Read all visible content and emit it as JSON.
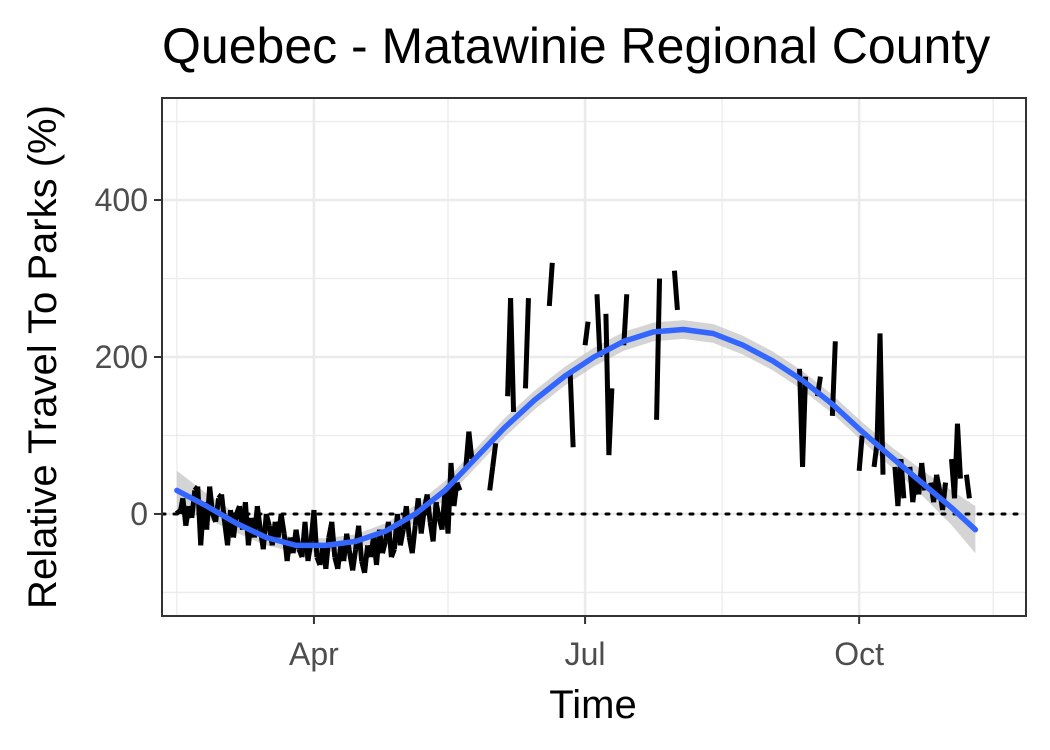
{
  "chart_data": {
    "type": "line",
    "title": "Quebec - Matawinie Regional County",
    "xlabel": "Time",
    "ylabel": "Relative Travel To Parks (%)",
    "x_axis": {
      "type": "date",
      "ticks": [
        "Apr",
        "Jul",
        "Oct"
      ],
      "range": [
        "2020-02-10",
        "2020-11-26"
      ]
    },
    "y_axis": {
      "ticks": [
        "0",
        "200",
        "400"
      ],
      "range": [
        -130,
        530
      ]
    },
    "grid": true,
    "reference_line": {
      "y": 0,
      "style": "dotted"
    },
    "series": [
      {
        "kind": "daily",
        "color": "#000000",
        "points": [
          [
            "2020-02-15",
            5
          ],
          [
            "2020-02-16",
            0
          ],
          [
            "2020-02-17",
            20
          ],
          [
            "2020-02-18",
            -15
          ],
          [
            "2020-02-19",
            10
          ],
          [
            "2020-02-20",
            -5
          ],
          [
            "2020-02-21",
            30
          ],
          [
            "2020-02-22",
            35
          ],
          [
            "2020-02-23",
            -40
          ],
          [
            "2020-02-24",
            15
          ],
          [
            "2020-02-25",
            -20
          ],
          [
            "2020-02-26",
            35
          ],
          [
            "2020-02-27",
            0
          ],
          [
            "2020-02-28",
            -10
          ],
          [
            "2020-02-29",
            20
          ],
          [
            "2020-03-01",
            25
          ],
          [
            "2020-03-02",
            -10
          ],
          [
            "2020-03-03",
            -40
          ],
          [
            "2020-03-04",
            5
          ],
          [
            "2020-03-05",
            -30
          ],
          [
            "2020-03-06",
            0
          ],
          [
            "2020-03-07",
            10
          ],
          [
            "2020-03-08",
            -20
          ],
          [
            "2020-03-09",
            15
          ],
          [
            "2020-03-10",
            -40
          ],
          [
            "2020-03-11",
            -5
          ],
          [
            "2020-03-12",
            -30
          ],
          [
            "2020-03-13",
            10
          ],
          [
            "2020-03-14",
            -20
          ],
          [
            "2020-03-15",
            -45
          ],
          [
            "2020-03-16",
            0
          ],
          [
            "2020-03-17",
            -15
          ],
          [
            "2020-03-18",
            -40
          ],
          [
            "2020-03-19",
            -10
          ],
          [
            "2020-03-20",
            -30
          ],
          [
            "2020-03-21",
            0
          ],
          [
            "2020-03-22",
            -25
          ],
          [
            "2020-03-23",
            -60
          ],
          [
            "2020-03-24",
            -30
          ],
          [
            "2020-03-25",
            -50
          ],
          [
            "2020-03-26",
            -20
          ],
          [
            "2020-03-27",
            -45
          ],
          [
            "2020-03-28",
            -55
          ],
          [
            "2020-03-29",
            -10
          ],
          [
            "2020-03-30",
            -60
          ],
          [
            "2020-03-31",
            -35
          ],
          [
            "2020-04-01",
            5
          ],
          [
            "2020-04-02",
            -55
          ],
          [
            "2020-04-03",
            -65
          ],
          [
            "2020-04-04",
            -40
          ],
          [
            "2020-04-05",
            -70
          ],
          [
            "2020-04-06",
            -30
          ],
          [
            "2020-04-07",
            -10
          ],
          [
            "2020-04-08",
            -55
          ],
          [
            "2020-04-09",
            -70
          ],
          [
            "2020-04-10",
            -40
          ],
          [
            "2020-04-11",
            -60
          ],
          [
            "2020-04-12",
            -25
          ],
          [
            "2020-04-13",
            -50
          ],
          [
            "2020-04-14",
            -72
          ],
          [
            "2020-04-15",
            -45
          ],
          [
            "2020-04-16",
            -15
          ],
          [
            "2020-04-17",
            -60
          ],
          [
            "2020-04-18",
            -75
          ],
          [
            "2020-04-19",
            -40
          ],
          [
            "2020-04-20",
            -55
          ],
          [
            "2020-04-21",
            -30
          ],
          [
            "2020-04-22",
            -65
          ],
          [
            "2020-04-23",
            -20
          ],
          [
            "2020-04-24",
            -50
          ],
          [
            "2020-04-25",
            -35
          ],
          [
            "2020-04-26",
            -10
          ],
          [
            "2020-04-27",
            -55
          ],
          [
            "2020-04-28",
            -45
          ],
          [
            "2020-04-29",
            0
          ],
          [
            "2020-04-30",
            -40
          ],
          [
            "2020-05-01",
            -20
          ],
          [
            "2020-05-02",
            10
          ],
          [
            "2020-05-03",
            -30
          ],
          [
            "2020-05-04",
            -50
          ],
          [
            "2020-05-05",
            -15
          ],
          [
            "2020-05-06",
            20
          ],
          [
            "2020-05-07",
            -25
          ],
          [
            "2020-05-08",
            5
          ],
          [
            "2020-05-09",
            25
          ],
          [
            "2020-05-10",
            -10
          ],
          [
            "2020-05-11",
            -35
          ],
          [
            "2020-05-12",
            15
          ],
          [
            "2020-05-13",
            -5
          ],
          [
            "2020-05-14",
            -20
          ],
          [
            "2020-05-15",
            30
          ],
          [
            "2020-05-16",
            -25
          ],
          [
            "2020-05-17",
            65
          ],
          [
            "2020-05-18",
            10
          ],
          [
            "2020-05-19",
            40
          ],
          [
            "2020-05-20",
            30
          ],
          [
            "2020-05-22",
            60
          ],
          [
            "2020-05-23",
            105
          ],
          [
            "2020-05-24",
            70
          ],
          [
            "2020-05-30",
            30
          ],
          [
            "2020-05-31",
            60
          ],
          [
            "2020-06-01",
            90
          ],
          [
            "2020-06-03",
            120
          ],
          [
            "2020-06-05",
            150
          ],
          [
            "2020-06-06",
            275
          ],
          [
            "2020-06-07",
            130
          ],
          [
            "2020-06-11",
            160
          ],
          [
            "2020-06-12",
            275
          ],
          [
            "2020-06-19",
            265
          ],
          [
            "2020-06-20",
            320
          ],
          [
            "2020-06-26",
            180
          ],
          [
            "2020-06-27",
            85
          ],
          [
            "2020-07-01",
            215
          ],
          [
            "2020-07-02",
            245
          ],
          [
            "2020-07-05",
            280
          ],
          [
            "2020-07-06",
            200
          ],
          [
            "2020-07-08",
            255
          ],
          [
            "2020-07-09",
            75
          ],
          [
            "2020-07-10",
            160
          ],
          [
            "2020-07-14",
            215
          ],
          [
            "2020-07-15",
            280
          ],
          [
            "2020-07-25",
            120
          ],
          [
            "2020-07-26",
            300
          ],
          [
            "2020-07-31",
            310
          ],
          [
            "2020-08-01",
            260
          ],
          [
            "2020-09-11",
            185
          ],
          [
            "2020-09-12",
            60
          ],
          [
            "2020-09-13",
            175
          ],
          [
            "2020-09-17",
            150
          ],
          [
            "2020-09-18",
            175
          ],
          [
            "2020-09-22",
            125
          ],
          [
            "2020-09-23",
            220
          ],
          [
            "2020-10-01",
            55
          ],
          [
            "2020-10-02",
            100
          ],
          [
            "2020-10-06",
            60
          ],
          [
            "2020-10-07",
            90
          ],
          [
            "2020-10-08",
            230
          ],
          [
            "2020-10-09",
            50
          ],
          [
            "2020-10-13",
            60
          ],
          [
            "2020-10-14",
            10
          ],
          [
            "2020-10-15",
            70
          ],
          [
            "2020-10-16",
            20
          ],
          [
            "2020-10-18",
            60
          ],
          [
            "2020-10-19",
            15
          ],
          [
            "2020-10-20",
            45
          ],
          [
            "2020-10-21",
            25
          ],
          [
            "2020-10-22",
            65
          ],
          [
            "2020-10-23",
            30
          ],
          [
            "2020-10-25",
            40
          ],
          [
            "2020-10-26",
            15
          ],
          [
            "2020-10-27",
            50
          ],
          [
            "2020-10-28",
            30
          ],
          [
            "2020-10-29",
            5
          ],
          [
            "2020-10-30",
            40
          ],
          [
            "2020-11-01",
            70
          ],
          [
            "2020-11-02",
            20
          ],
          [
            "2020-11-03",
            115
          ],
          [
            "2020-11-04",
            45
          ],
          [
            "2020-11-06",
            50
          ],
          [
            "2020-11-07",
            20
          ]
        ]
      },
      {
        "kind": "smooth",
        "color": "#3366ff",
        "ribbon_color": "#bdbdbd",
        "points": [
          [
            "2020-02-15",
            30
          ],
          [
            "2020-02-25",
            10
          ],
          [
            "2020-03-06",
            -12
          ],
          [
            "2020-03-16",
            -30
          ],
          [
            "2020-03-26",
            -40
          ],
          [
            "2020-04-05",
            -40
          ],
          [
            "2020-04-15",
            -35
          ],
          [
            "2020-04-25",
            -22
          ],
          [
            "2020-05-05",
            0
          ],
          [
            "2020-05-15",
            30
          ],
          [
            "2020-05-25",
            70
          ],
          [
            "2020-06-04",
            110
          ],
          [
            "2020-06-14",
            145
          ],
          [
            "2020-06-24",
            175
          ],
          [
            "2020-07-04",
            200
          ],
          [
            "2020-07-14",
            220
          ],
          [
            "2020-07-24",
            232
          ],
          [
            "2020-08-03",
            235
          ],
          [
            "2020-08-13",
            230
          ],
          [
            "2020-08-23",
            215
          ],
          [
            "2020-09-02",
            195
          ],
          [
            "2020-09-12",
            170
          ],
          [
            "2020-09-22",
            140
          ],
          [
            "2020-10-02",
            105
          ],
          [
            "2020-10-12",
            72
          ],
          [
            "2020-10-22",
            40
          ],
          [
            "2020-11-01",
            8
          ],
          [
            "2020-11-09",
            -20
          ]
        ],
        "ribbon_halfwidth": [
          25,
          16,
          12,
          10,
          9,
          9,
          9,
          10,
          11,
          12,
          12,
          12,
          12,
          12,
          12,
          12,
          12,
          12,
          12,
          12,
          12,
          12,
          12,
          12,
          13,
          16,
          22,
          30
        ]
      }
    ]
  }
}
